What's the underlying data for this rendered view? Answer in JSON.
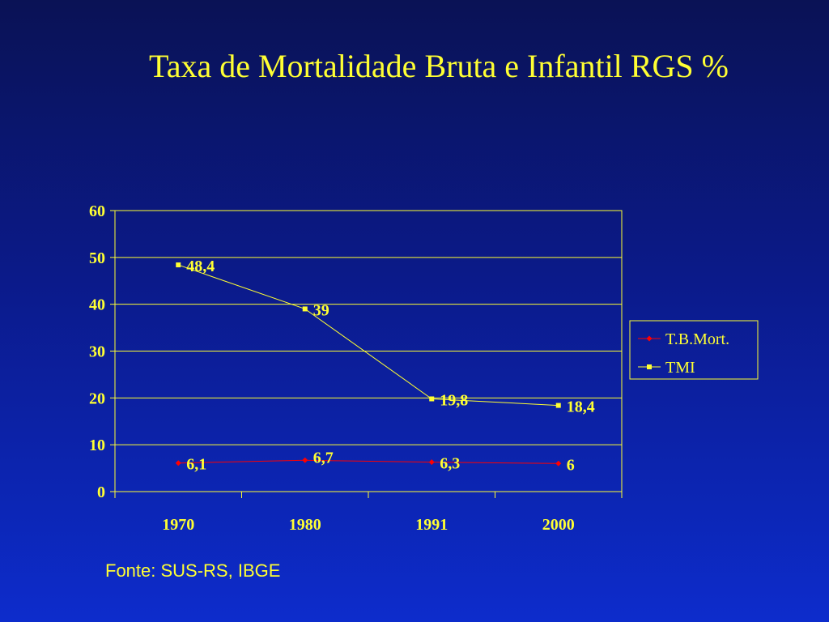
{
  "slide": {
    "title": "Taxa de Mortalidade Bruta e Infantil RGS %",
    "source": "Fonte: SUS-RS, IBGE"
  },
  "colors": {
    "text": "#ffff33",
    "grid": "#ffff33",
    "series_tbmort": "#ff0000",
    "series_tmi": "#ffff33"
  },
  "chart_data": {
    "type": "line",
    "title": "",
    "xlabel": "",
    "ylabel": "",
    "categories": [
      "1970",
      "1980",
      "1991",
      "2000"
    ],
    "ylim": [
      0,
      60
    ],
    "yticks": [
      0,
      10,
      20,
      30,
      40,
      50,
      60
    ],
    "ytick_labels": [
      "0",
      "10",
      "20",
      "30",
      "40",
      "50",
      "60"
    ],
    "grid": true,
    "legend_position": "right",
    "series": [
      {
        "name": "T.B.Mort.",
        "values": [
          6.1,
          6.7,
          6.3,
          6
        ],
        "labels": [
          "6,1",
          "6,7",
          "6,3",
          "6"
        ],
        "marker": "diamond",
        "color": "#ff0000"
      },
      {
        "name": "TMI",
        "values": [
          48.4,
          39,
          19.8,
          18.4
        ],
        "labels": [
          "48,4",
          "39",
          "19,8",
          "18,4"
        ],
        "marker": "square",
        "color": "#ffff33"
      }
    ]
  }
}
